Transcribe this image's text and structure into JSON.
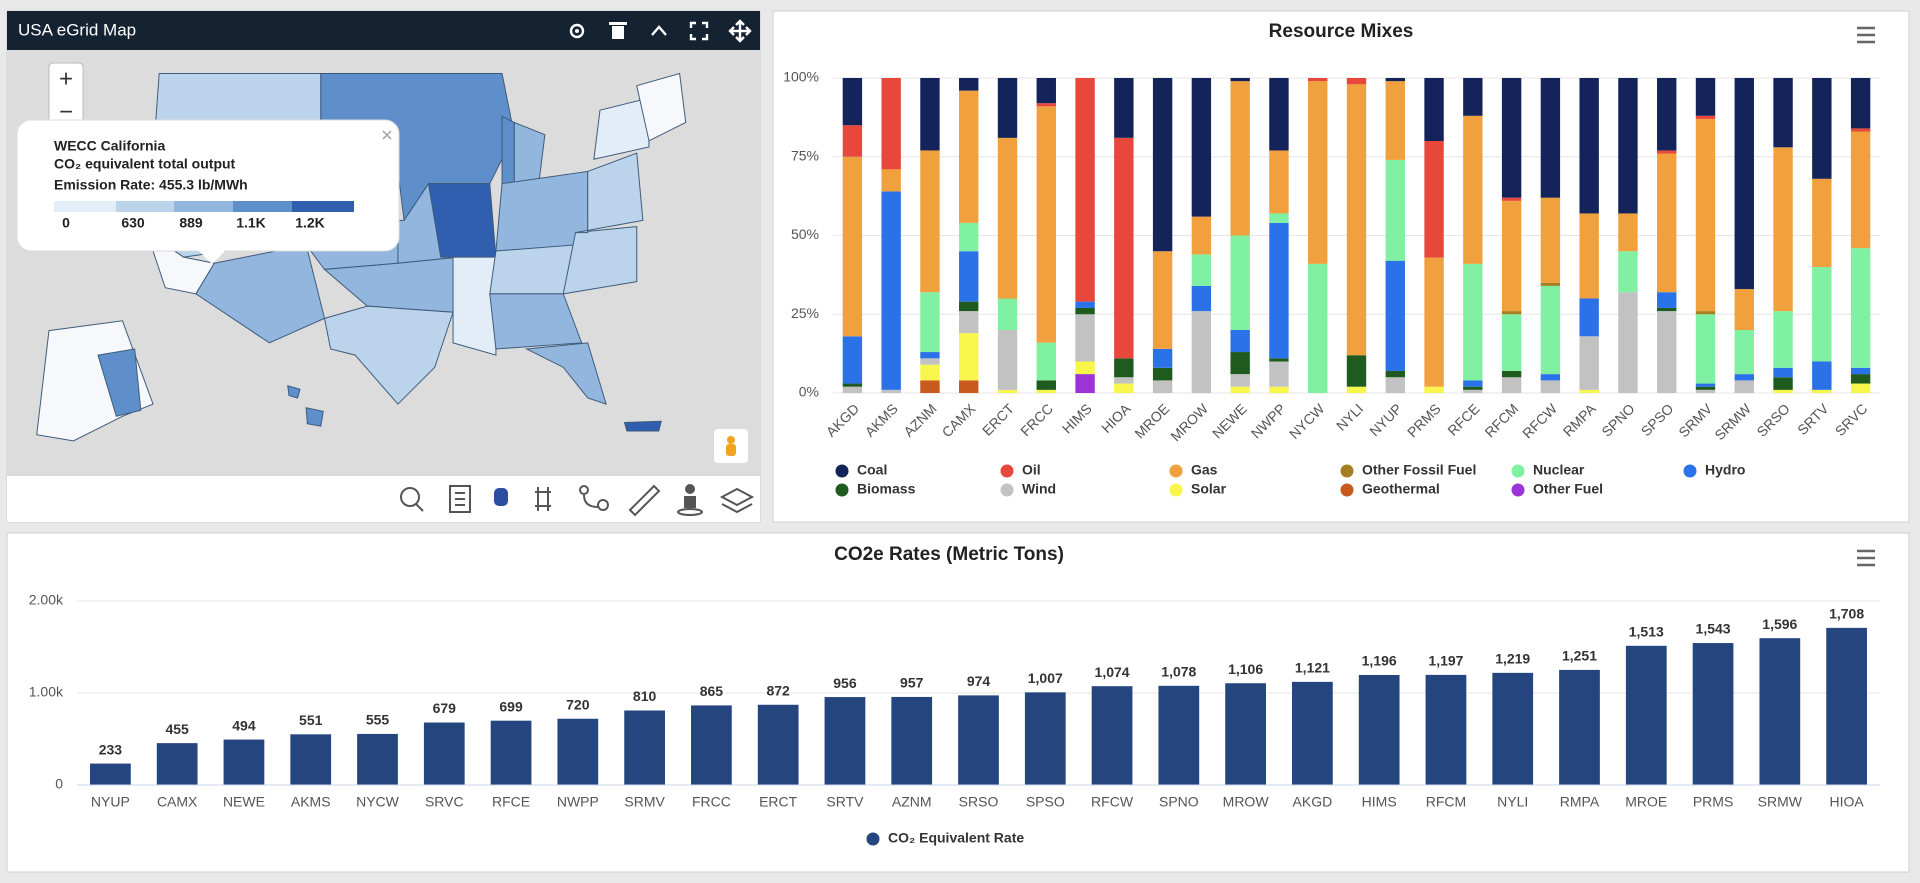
{
  "map_panel": {
    "title": "USA eGrid Map",
    "zoom_in": "+",
    "zoom_out": "−",
    "popup": {
      "region": "WECC California",
      "metric": "CO₂ equivalent total output",
      "rate": "Emission Rate: 455.3 lb/MWh",
      "scale_labels": [
        "0",
        "630",
        "889",
        "1.1K",
        "1.2K"
      ],
      "scale_colors": [
        "#e3edf8",
        "#bcd3ec",
        "#93b6de",
        "#5f8fcb",
        "#2f5fae"
      ]
    }
  },
  "chart_data": [
    {
      "type": "stacked_bar",
      "title": "Resource Mixes",
      "categories": [
        "AKGD",
        "AKMS",
        "AZNM",
        "CAMX",
        "ERCT",
        "FRCC",
        "HIMS",
        "HIOA",
        "MROE",
        "MROW",
        "NEWE",
        "NWPP",
        "NYCW",
        "NYLI",
        "NYUP",
        "PRMS",
        "RFCE",
        "RFCM",
        "RFCW",
        "RMPA",
        "SPNO",
        "SPSO",
        "SRMV",
        "SRMW",
        "SRSO",
        "SRTV",
        "SRVC"
      ],
      "series": [
        {
          "name": "Coal",
          "color": "#14245a",
          "values": [
            15,
            0,
            23,
            4,
            19,
            8,
            0,
            19,
            55,
            44,
            1,
            23,
            0,
            0,
            1,
            20,
            12,
            38,
            38,
            43,
            43,
            23,
            12,
            67,
            22,
            32,
            16
          ]
        },
        {
          "name": "Oil",
          "color": "#e8473b",
          "values": [
            10,
            29,
            0,
            0,
            0,
            1,
            71,
            70,
            0,
            0,
            0,
            0,
            1,
            2,
            0,
            37,
            0,
            1,
            0,
            0,
            0,
            1,
            1,
            0,
            0,
            0,
            1
          ]
        },
        {
          "name": "Gas",
          "color": "#f0a03c",
          "values": [
            57,
            7,
            45,
            42,
            51,
            75,
            0,
            0,
            31,
            12,
            49,
            20,
            58,
            86,
            25,
            41,
            47,
            35,
            27,
            27,
            12,
            44,
            61,
            13,
            52,
            28,
            37
          ]
        },
        {
          "name": "Other Fossil Fuel",
          "color": "#a47e20",
          "values": [
            0,
            0,
            0,
            0,
            0,
            0,
            0,
            0,
            0,
            0,
            0,
            0,
            0,
            0,
            0,
            0,
            0,
            1,
            1,
            0,
            0,
            0,
            1,
            0,
            0,
            0,
            0
          ]
        },
        {
          "name": "Nuclear",
          "color": "#80f0a2",
          "values": [
            0,
            0,
            19,
            9,
            10,
            12,
            0,
            0,
            0,
            10,
            30,
            3,
            41,
            0,
            32,
            0,
            37,
            18,
            28,
            0,
            13,
            0,
            22,
            14,
            18,
            30,
            38
          ]
        },
        {
          "name": "Hydro",
          "color": "#2b72e8",
          "values": [
            15,
            63,
            2,
            16,
            0,
            0,
            2,
            0,
            6,
            8,
            7,
            43,
            0,
            0,
            35,
            0,
            2,
            0,
            2,
            12,
            0,
            5,
            1,
            2,
            3,
            9,
            2
          ]
        },
        {
          "name": "Biomass",
          "color": "#1f5a1f",
          "values": [
            1,
            0,
            0,
            3,
            0,
            3,
            2,
            6,
            4,
            0,
            7,
            1,
            0,
            10,
            2,
            0,
            1,
            2,
            0,
            0,
            0,
            1,
            1,
            0,
            4,
            0,
            3
          ]
        },
        {
          "name": "Wind",
          "color": "#c2c2c2",
          "values": [
            2,
            1,
            2,
            7,
            19,
            0,
            15,
            2,
            4,
            26,
            4,
            8,
            0,
            0,
            5,
            0,
            1,
            5,
            4,
            17,
            32,
            26,
            1,
            4,
            0,
            0,
            0
          ]
        },
        {
          "name": "Solar",
          "color": "#f8f64a",
          "values": [
            0,
            0,
            5,
            15,
            1,
            1,
            4,
            3,
            0,
            0,
            2,
            2,
            0,
            2,
            0,
            2,
            0,
            0,
            0,
            1,
            0,
            0,
            0,
            0,
            1,
            1,
            3
          ]
        },
        {
          "name": "Geothermal",
          "color": "#c8591f",
          "values": [
            0,
            0,
            4,
            4,
            0,
            0,
            0,
            0,
            0,
            0,
            0,
            0,
            0,
            0,
            0,
            0,
            0,
            0,
            0,
            0,
            0,
            0,
            0,
            0,
            0,
            0,
            0
          ]
        },
        {
          "name": "Other Fuel",
          "color": "#9b33d8",
          "values": [
            0,
            0,
            0,
            0,
            0,
            0,
            6,
            0,
            0,
            0,
            0,
            0,
            0,
            0,
            0,
            0,
            0,
            0,
            0,
            0,
            0,
            0,
            0,
            0,
            0,
            0,
            0
          ]
        }
      ],
      "ylim": [
        0,
        100
      ],
      "yticks": [
        {
          "value": 0,
          "label": "0%"
        },
        {
          "value": 25,
          "label": "25%"
        },
        {
          "value": 50,
          "label": "50%"
        },
        {
          "value": 75,
          "label": "75%"
        },
        {
          "value": 100,
          "label": "100%"
        }
      ],
      "grid": true
    },
    {
      "type": "bar",
      "title": "CO2e Rates (Metric Tons)",
      "categories": [
        "NYUP",
        "CAMX",
        "NEWE",
        "AKMS",
        "NYCW",
        "SRVC",
        "RFCE",
        "NWPP",
        "SRMV",
        "FRCC",
        "ERCT",
        "SRTV",
        "AZNM",
        "SRSO",
        "SPSO",
        "RFCW",
        "SPNO",
        "MROW",
        "AKGD",
        "HIMS",
        "RFCM",
        "NYLI",
        "RMPA",
        "MROE",
        "PRMS",
        "SRMW",
        "HIOA"
      ],
      "series": [
        {
          "name": "CO₂ Equivalent Rate",
          "color": "#25457f",
          "values": [
            233,
            455,
            494,
            551,
            555,
            679,
            699,
            720,
            810,
            865,
            872,
            956,
            957,
            974,
            1007,
            1074,
            1078,
            1106,
            1121,
            1196,
            1197,
            1219,
            1251,
            1513,
            1543,
            1596,
            1708
          ],
          "value_labels": [
            "233",
            "455",
            "494",
            "551",
            "555",
            "679",
            "699",
            "720",
            "810",
            "865",
            "872",
            "956",
            "957",
            "974",
            "1,007",
            "1,074",
            "1,078",
            "1,106",
            "1,121",
            "1,196",
            "1,197",
            "1,219",
            "1,251",
            "1,513",
            "1,543",
            "1,596",
            "1,708"
          ]
        }
      ],
      "ylim": [
        0,
        2000
      ],
      "yticks": [
        0,
        {
          "value": 1000,
          "label": "1.00k"
        },
        {
          "value": 2000,
          "label": "2.00k"
        }
      ],
      "grid": true
    }
  ]
}
